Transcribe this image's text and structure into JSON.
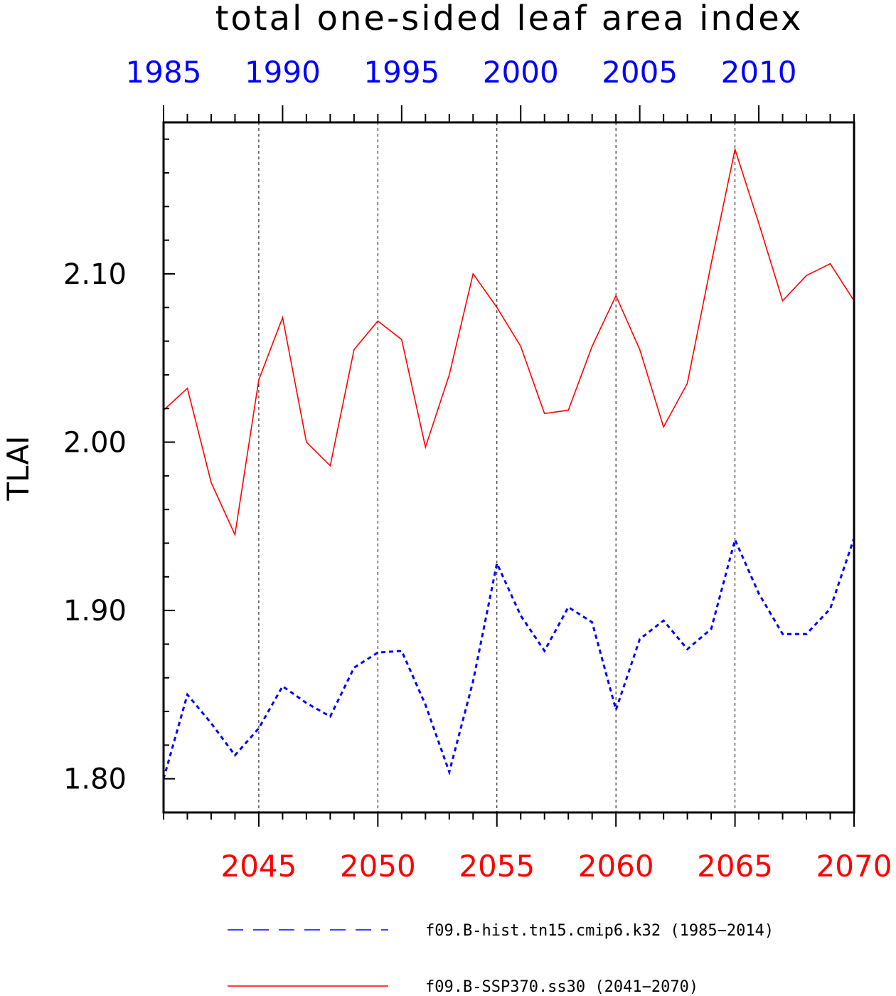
{
  "chart_data": {
    "type": "line",
    "title": "total one-sided leaf area index",
    "ylabel": "TLAI",
    "ylim": [
      1.78,
      2.19
    ],
    "yticks": [
      "1.80",
      "1.90",
      "2.00",
      "2.10"
    ],
    "x_bottom": {
      "range": [
        2041,
        2070
      ],
      "ticks": [
        "2045",
        "2050",
        "2055",
        "2060",
        "2065",
        "2070"
      ],
      "color": "#ff0000"
    },
    "x_top": {
      "range": [
        1985,
        2014
      ],
      "ticks": [
        "1985",
        "1990",
        "1995",
        "2000",
        "2005",
        "2010"
      ],
      "color": "#0000ff"
    },
    "grid": "vertical dashed lines at major bottom ticks",
    "legend_position": "bottom",
    "series": [
      {
        "name": "f09.B-hist.tn15.cmip6.k32 (1985−2014)",
        "color": "#0000ff",
        "style": "dashed",
        "axis": "top",
        "x": [
          1985,
          1986,
          1987,
          1988,
          1989,
          1990,
          1991,
          1992,
          1993,
          1994,
          1995,
          1996,
          1997,
          1998,
          1999,
          2000,
          2001,
          2002,
          2003,
          2004,
          2005,
          2006,
          2007,
          2008,
          2009,
          2010,
          2011,
          2012,
          2013,
          2014
        ],
        "values": [
          1.8,
          1.85,
          1.833,
          1.814,
          1.83,
          1.855,
          1.845,
          1.837,
          1.866,
          1.875,
          1.876,
          1.844,
          1.804,
          1.858,
          1.928,
          1.897,
          1.876,
          1.902,
          1.893,
          1.841,
          1.883,
          1.894,
          1.877,
          1.889,
          1.942,
          1.91,
          1.886,
          1.886,
          1.901,
          1.943
        ]
      },
      {
        "name": "f09.B-SSP370.ss30 (2041−2070)",
        "color": "#ff0000",
        "style": "solid",
        "axis": "bottom",
        "x": [
          2041,
          2042,
          2043,
          2044,
          2045,
          2046,
          2047,
          2048,
          2049,
          2050,
          2051,
          2052,
          2053,
          2054,
          2055,
          2056,
          2057,
          2058,
          2059,
          2060,
          2061,
          2062,
          2063,
          2064,
          2065,
          2066,
          2067,
          2068,
          2069,
          2070
        ],
        "values": [
          2.019,
          2.032,
          1.976,
          1.945,
          2.037,
          2.074,
          2.0,
          1.986,
          2.055,
          2.072,
          2.061,
          1.997,
          2.04,
          2.1,
          2.08,
          2.057,
          2.017,
          2.019,
          2.057,
          2.087,
          2.055,
          2.009,
          2.035,
          2.106,
          2.174,
          2.13,
          2.084,
          2.099,
          2.106,
          2.084
        ]
      }
    ]
  }
}
